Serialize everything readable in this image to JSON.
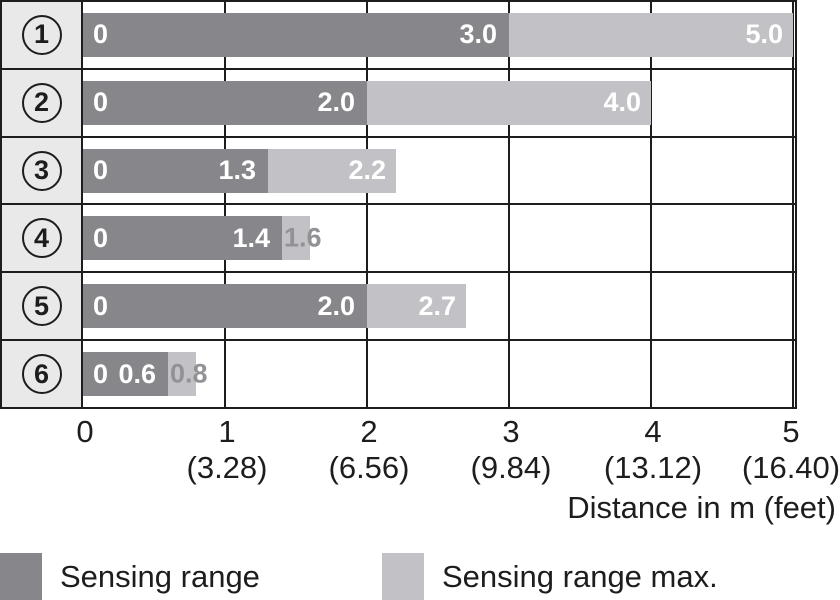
{
  "chart_data": {
    "type": "bar",
    "orientation": "horizontal",
    "categories": [
      "1",
      "2",
      "3",
      "4",
      "5",
      "6"
    ],
    "series": [
      {
        "name": "Sensing range",
        "color": "#87878b",
        "values": [
          3.0,
          2.0,
          1.3,
          1.4,
          2.0,
          0.6
        ]
      },
      {
        "name": "Sensing range max.",
        "color": "#c2c2c6",
        "values": [
          5.0,
          4.0,
          2.2,
          1.6,
          2.7,
          0.8
        ]
      }
    ],
    "bar_labels": {
      "start": "0",
      "range": [
        "3.0",
        "2.0",
        "1.3",
        "1.4",
        "2.0",
        "0.6"
      ],
      "max": [
        "5.0",
        "4.0",
        "2.2",
        "1.6",
        "2.7",
        "0.8"
      ]
    },
    "xlabel": "Distance in m (feet)",
    "xlim": [
      0,
      5
    ],
    "grid": true,
    "x_ticks": [
      {
        "m": "0",
        "feet": ""
      },
      {
        "m": "1",
        "feet": "(3.28)"
      },
      {
        "m": "2",
        "feet": "(6.56)"
      },
      {
        "m": "3",
        "feet": "(9.84)"
      },
      {
        "m": "4",
        "feet": "(13.12)"
      },
      {
        "m": "5",
        "feet": "(16.40)"
      }
    ],
    "legend_position": "bottom",
    "colors": {
      "grid_line": "#1d1d1d",
      "category_background": "#e9e9e9",
      "outside_label": "#929296"
    }
  },
  "axis": {
    "label": "Distance in m (feet)"
  },
  "legend": {
    "items": [
      {
        "label": "Sensing range",
        "color": "#87878b"
      },
      {
        "label": "Sensing range max.",
        "color": "#c2c2c6"
      }
    ]
  }
}
